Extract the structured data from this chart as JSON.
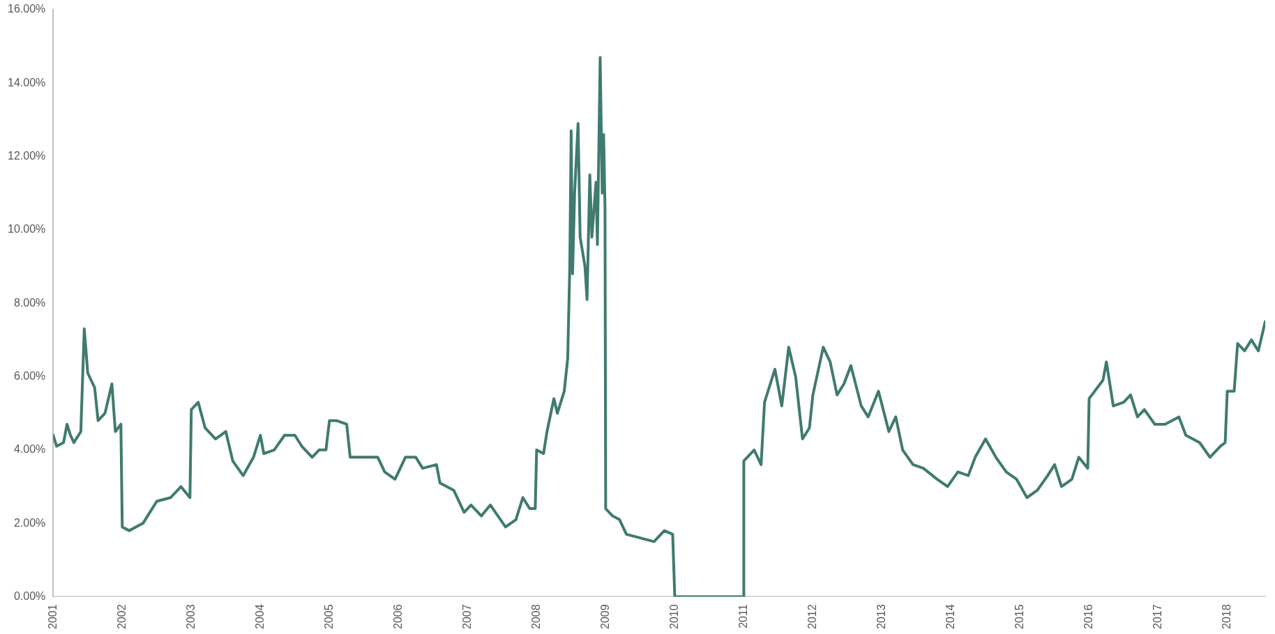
{
  "chart_data": {
    "type": "line",
    "xlim": [
      2001,
      2018.55
    ],
    "xticks": [
      2001,
      2002,
      2003,
      2004,
      2005,
      2006,
      2007,
      2008,
      2009,
      2010,
      2011,
      2012,
      2013,
      2014,
      2015,
      2016,
      2017,
      2018
    ],
    "ylim": [
      0,
      16
    ],
    "yticks": [
      {
        "value": 0,
        "label": "0.00%"
      },
      {
        "value": 2,
        "label": "2.00%"
      },
      {
        "value": 4,
        "label": "4.00%"
      },
      {
        "value": 6,
        "label": "6.00%"
      },
      {
        "value": 8,
        "label": "8.00%"
      },
      {
        "value": 10,
        "label": "10.00%"
      },
      {
        "value": 12,
        "label": "12.00%"
      },
      {
        "value": 14,
        "label": "14.00%"
      },
      {
        "value": 16,
        "label": "16.00%"
      }
    ],
    "grid": false,
    "legend": false,
    "marker": "none",
    "line_style": "solid",
    "series": [
      {
        "color": "#3f7b6e",
        "x": [
          2001.0,
          2001.05,
          2001.15,
          2001.2,
          2001.25,
          2001.3,
          2001.4,
          2001.45,
          2001.5,
          2001.6,
          2001.65,
          2001.75,
          2001.85,
          2001.9,
          2001.98,
          2002.0,
          2002.1,
          2002.3,
          2002.5,
          2002.7,
          2002.85,
          2002.98,
          2003.0,
          2003.1,
          2003.2,
          2003.35,
          2003.5,
          2003.6,
          2003.75,
          2003.9,
          2004.0,
          2004.05,
          2004.2,
          2004.35,
          2004.5,
          2004.6,
          2004.75,
          2004.85,
          2004.95,
          2005.0,
          2005.1,
          2005.25,
          2005.3,
          2005.5,
          2005.7,
          2005.8,
          2005.95,
          2006.1,
          2006.25,
          2006.35,
          2006.55,
          2006.6,
          2006.8,
          2006.95,
          2007.05,
          2007.2,
          2007.33,
          2007.55,
          2007.7,
          2007.8,
          2007.9,
          2007.98,
          2008.0,
          2008.1,
          2008.15,
          2008.25,
          2008.3,
          2008.4,
          2008.45,
          2008.48,
          2008.5,
          2008.52,
          2008.55,
          2008.6,
          2008.63,
          2008.7,
          2008.73,
          2008.77,
          2008.8,
          2008.86,
          2008.88,
          2008.92,
          2008.95,
          2008.97,
          2008.99,
          2009.0,
          2009.1,
          2009.2,
          2009.3,
          2009.5,
          2009.7,
          2009.85,
          2009.97,
          2010.0,
          2011.0,
          2011.0,
          2011.15,
          2011.25,
          2011.3,
          2011.45,
          2011.55,
          2011.65,
          2011.75,
          2011.85,
          2011.95,
          2012.0,
          2012.15,
          2012.25,
          2012.35,
          2012.45,
          2012.55,
          2012.7,
          2012.8,
          2012.95,
          2013.1,
          2013.2,
          2013.3,
          2013.45,
          2013.6,
          2013.8,
          2013.95,
          2014.1,
          2014.25,
          2014.35,
          2014.5,
          2014.65,
          2014.8,
          2014.95,
          2015.1,
          2015.25,
          2015.4,
          2015.5,
          2015.6,
          2015.75,
          2015.85,
          2015.98,
          2016.0,
          2016.2,
          2016.25,
          2016.35,
          2016.5,
          2016.6,
          2016.7,
          2016.8,
          2016.95,
          2017.1,
          2017.3,
          2017.4,
          2017.6,
          2017.75,
          2017.9,
          2017.97,
          2018.0,
          2018.1,
          2018.15,
          2018.25,
          2018.35,
          2018.45,
          2018.55
        ],
        "values": [
          4.4,
          4.1,
          4.2,
          4.7,
          4.4,
          4.2,
          4.5,
          7.3,
          6.1,
          5.7,
          4.8,
          5.0,
          5.8,
          4.5,
          4.7,
          1.9,
          1.8,
          2.0,
          2.6,
          2.7,
          3.0,
          2.7,
          5.1,
          5.3,
          4.6,
          4.3,
          4.5,
          3.7,
          3.3,
          3.8,
          4.4,
          3.9,
          4.0,
          4.4,
          4.4,
          4.1,
          3.8,
          4.0,
          4.0,
          4.8,
          4.8,
          4.7,
          3.8,
          3.8,
          3.8,
          3.4,
          3.2,
          3.8,
          3.8,
          3.5,
          3.6,
          3.1,
          2.9,
          2.3,
          2.5,
          2.2,
          2.5,
          1.9,
          2.1,
          2.7,
          2.4,
          2.4,
          4.0,
          3.9,
          4.5,
          5.4,
          5.0,
          5.6,
          6.5,
          9.0,
          12.7,
          8.8,
          11.0,
          12.9,
          9.8,
          9.0,
          8.1,
          11.5,
          9.8,
          11.3,
          9.6,
          14.7,
          11.0,
          12.6,
          10.6,
          2.4,
          2.2,
          2.1,
          1.7,
          1.6,
          1.5,
          1.8,
          1.7,
          0,
          0,
          3.7,
          4.0,
          3.6,
          5.3,
          6.2,
          5.2,
          6.8,
          6.0,
          4.3,
          4.6,
          5.5,
          6.8,
          6.4,
          5.5,
          5.8,
          6.3,
          5.2,
          4.9,
          5.6,
          4.5,
          4.9,
          4.0,
          3.6,
          3.5,
          3.2,
          3.0,
          3.4,
          3.3,
          3.8,
          4.3,
          3.8,
          3.4,
          3.2,
          2.7,
          2.9,
          3.3,
          3.6,
          3.0,
          3.2,
          3.8,
          3.5,
          5.4,
          5.9,
          6.4,
          5.2,
          5.3,
          5.5,
          4.9,
          5.1,
          4.7,
          4.7,
          4.9,
          4.4,
          4.2,
          3.8,
          4.1,
          4.2,
          5.6,
          5.6,
          6.9,
          6.7,
          7.0,
          6.7,
          7.5
        ]
      }
    ]
  }
}
